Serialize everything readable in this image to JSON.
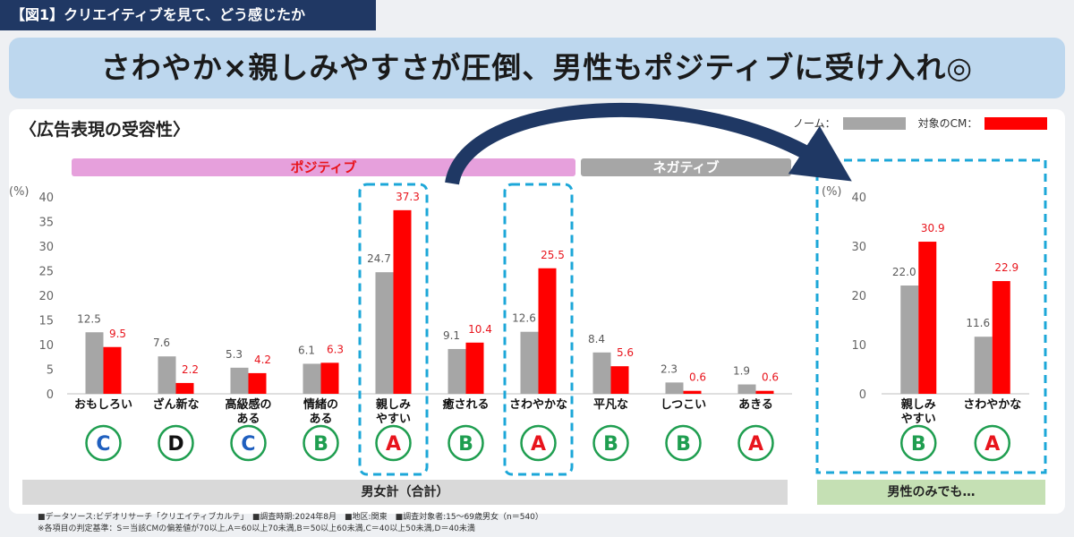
{
  "header": {
    "figure_tag": "【図1】クリエイティブを見て、どう感じたか",
    "banner": "さわやか×親しみやすさが圧倒、男性もポジティブに受け入れ◎",
    "subtitle": "〈広告表現の受容性〉"
  },
  "legend": {
    "norm_label": "ノーム：",
    "target_label": "対象のCM：",
    "norm_color": "#a6a6a6",
    "target_color": "#ff0000"
  },
  "bands": {
    "positive": "ポジティブ",
    "negative": "ネガティブ"
  },
  "footer": {
    "left": "男女計（合計）",
    "right": "男性のみでも…",
    "note1": "■データソース:ビデオリサーチ「クリエイティブカルテ」　■調査時期:2024年8月　■地区:関東　■調査対象者:15～69歳男女（n＝540）",
    "note2": "※各項目の判定基準：S＝当該CMの偏差値が70以上,A＝60以上70未満,B＝50以上60未満,C＝40以上50未満,D＝40未満"
  },
  "grade_colors": {
    "A": "#e8141c",
    "B": "#1f9e50",
    "C": "#1f5fbf",
    "D": "#111111"
  },
  "chart_data": [
    {
      "type": "bar",
      "ylabel": "(%)",
      "ylim": [
        0,
        40
      ],
      "yticks": [
        0,
        5,
        10,
        15,
        20,
        25,
        30,
        35,
        40
      ],
      "categories": [
        [
          "おもしろい"
        ],
        [
          "ざん新な"
        ],
        [
          "高級感の",
          "ある"
        ],
        [
          "情緒の",
          "ある"
        ],
        [
          "親しみ",
          "やすい"
        ],
        [
          "癒される"
        ],
        [
          "さわやかな"
        ],
        [
          "平凡な"
        ],
        [
          "しつこい"
        ],
        [
          "あきる"
        ]
      ],
      "series": [
        {
          "name": "ノーム",
          "values": [
            12.5,
            7.6,
            5.3,
            6.1,
            24.7,
            9.1,
            12.6,
            8.4,
            2.3,
            1.9
          ]
        },
        {
          "name": "対象のCM",
          "values": [
            9.5,
            2.2,
            4.2,
            6.3,
            37.3,
            10.4,
            25.5,
            5.6,
            0.6,
            0.6
          ]
        }
      ],
      "grades": [
        "C",
        "D",
        "C",
        "B",
        "A",
        "B",
        "A",
        "B",
        "B",
        "A"
      ],
      "highlight": [
        4,
        6
      ]
    },
    {
      "type": "bar",
      "ylabel": "(%)",
      "ylim": [
        0,
        40
      ],
      "yticks": [
        0,
        10,
        20,
        30,
        40
      ],
      "categories": [
        [
          "親しみ",
          "やすい"
        ],
        [
          "さわやかな"
        ]
      ],
      "series": [
        {
          "name": "ノーム",
          "values": [
            22.0,
            11.6
          ]
        },
        {
          "name": "対象のCM",
          "values": [
            30.9,
            22.9
          ]
        }
      ],
      "grades": [
        "B",
        "A"
      ]
    }
  ]
}
